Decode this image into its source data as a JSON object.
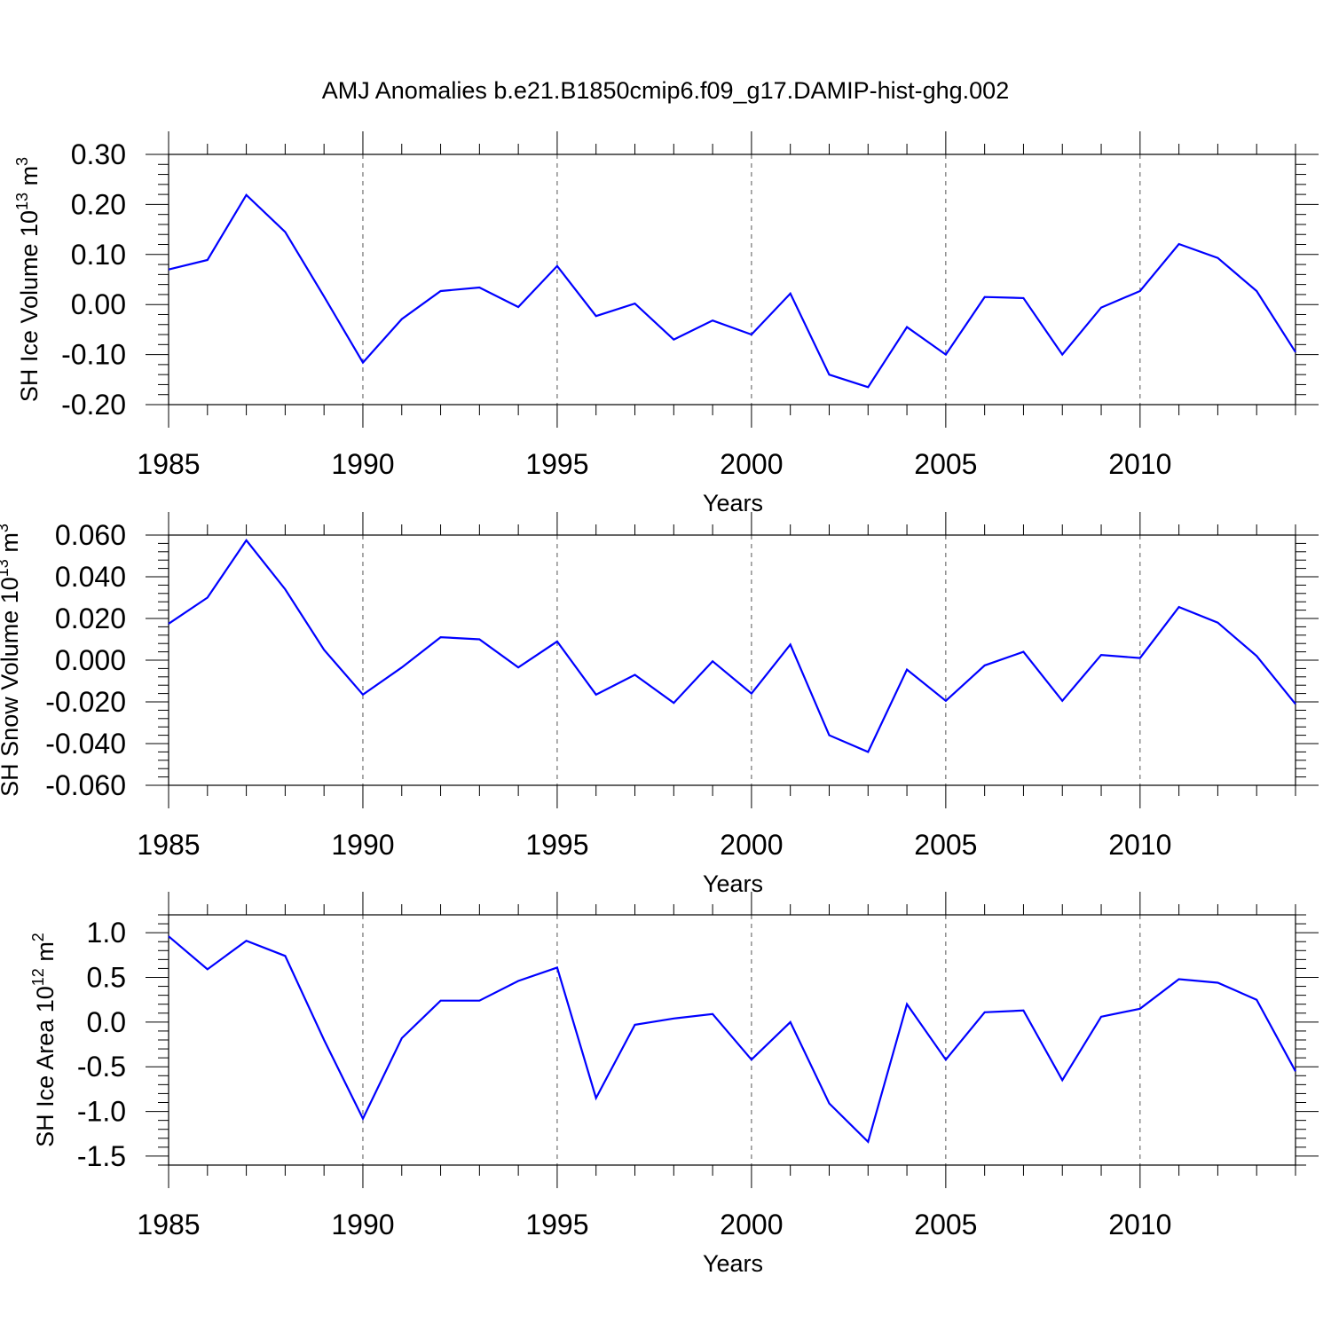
{
  "title": "AMJ Anomalies b.e21.B1850cmip6.f09_g17.DAMIP-hist-ghg.002",
  "colors": {
    "line": "#0000ff",
    "axes": "#000000",
    "grid": "#555555",
    "background": "#ffffff"
  },
  "chart_data": [
    {
      "type": "line",
      "xlabel": "Years",
      "ylabel_text": "SH Ice Volume 10",
      "ylabel_exp": "13",
      "ylabel_unit": "m",
      "ylabel_unit_exp": "3",
      "xlim": [
        1985,
        2014
      ],
      "ylim": [
        -0.2,
        0.3
      ],
      "x_ticks": [
        1985,
        1990,
        1995,
        2000,
        2005,
        2010
      ],
      "x_tick_labels": [
        "1985",
        "1990",
        "1995",
        "2000",
        "2005",
        "2010"
      ],
      "y_ticks": [
        0.3,
        0.2,
        0.1,
        0.0,
        -0.1,
        -0.2
      ],
      "y_tick_labels": [
        "0.30",
        "0.20",
        "0.10",
        "0.00",
        "-0.10",
        "-0.20"
      ],
      "y_minor_step": 0.02,
      "grid": "vertical dashed at major x ticks",
      "x": [
        1985,
        1986,
        1987,
        1988,
        1989,
        1990,
        1991,
        1992,
        1993,
        1994,
        1995,
        1996,
        1997,
        1998,
        1999,
        2000,
        2001,
        2002,
        2003,
        2004,
        2005,
        2006,
        2007,
        2008,
        2009,
        2010,
        2011,
        2012,
        2013,
        2014
      ],
      "values": [
        0.07,
        0.089,
        0.219,
        0.145,
        0.016,
        -0.116,
        -0.029,
        0.027,
        0.034,
        -0.005,
        0.077,
        -0.023,
        0.002,
        -0.07,
        -0.032,
        -0.06,
        0.022,
        -0.14,
        -0.165,
        -0.045,
        -0.1,
        0.015,
        0.013,
        -0.1,
        -0.006,
        0.027,
        0.121,
        0.093,
        0.027,
        -0.095
      ]
    },
    {
      "type": "line",
      "xlabel": "Years",
      "ylabel_text": "SH Snow Volume 10",
      "ylabel_exp": "13",
      "ylabel_unit": "m",
      "ylabel_unit_exp": "3",
      "xlim": [
        1985,
        2014
      ],
      "ylim": [
        -0.06,
        0.06
      ],
      "x_ticks": [
        1985,
        1990,
        1995,
        2000,
        2005,
        2010
      ],
      "x_tick_labels": [
        "1985",
        "1990",
        "1995",
        "2000",
        "2005",
        "2010"
      ],
      "y_ticks": [
        0.06,
        0.04,
        0.02,
        0.0,
        -0.02,
        -0.04,
        -0.06
      ],
      "y_tick_labels": [
        "0.060",
        "0.040",
        "0.020",
        "0.000",
        "-0.020",
        "-0.040",
        "-0.060"
      ],
      "y_minor_step": 0.004,
      "grid": "vertical dashed at major x ticks",
      "x": [
        1985,
        1986,
        1987,
        1988,
        1989,
        1990,
        1991,
        1992,
        1993,
        1994,
        1995,
        1996,
        1997,
        1998,
        1999,
        2000,
        2001,
        2002,
        2003,
        2004,
        2005,
        2006,
        2007,
        2008,
        2009,
        2010,
        2011,
        2012,
        2013,
        2014
      ],
      "values": [
        0.0175,
        0.03,
        0.0575,
        0.034,
        0.005,
        -0.0165,
        -0.0035,
        0.011,
        0.01,
        -0.0035,
        0.009,
        -0.0165,
        -0.007,
        -0.0205,
        -0.0005,
        -0.016,
        0.0075,
        -0.036,
        -0.044,
        -0.0045,
        -0.0195,
        -0.0025,
        0.004,
        -0.0195,
        0.0025,
        0.001,
        0.0255,
        0.018,
        0.002,
        -0.021
      ]
    },
    {
      "type": "line",
      "xlabel": "Years",
      "ylabel_text": "SH Ice Area 10",
      "ylabel_exp": "12",
      "ylabel_unit": "m",
      "ylabel_unit_exp": "2",
      "xlim": [
        1985,
        2014
      ],
      "ylim": [
        -1.6,
        1.2
      ],
      "x_ticks": [
        1985,
        1990,
        1995,
        2000,
        2005,
        2010
      ],
      "x_tick_labels": [
        "1985",
        "1990",
        "1995",
        "2000",
        "2005",
        "2010"
      ],
      "y_ticks": [
        1.0,
        0.5,
        0.0,
        -0.5,
        -1.0,
        -1.5
      ],
      "y_tick_labels": [
        "1.0",
        "0.5",
        "0.0",
        "-0.5",
        "-1.0",
        "-1.5"
      ],
      "y_minor_step": 0.1,
      "grid": "vertical dashed at major x ticks",
      "x": [
        1985,
        1986,
        1987,
        1988,
        1989,
        1990,
        1991,
        1992,
        1993,
        1994,
        1995,
        1996,
        1997,
        1998,
        1999,
        2000,
        2001,
        2002,
        2003,
        2004,
        2005,
        2006,
        2007,
        2008,
        2009,
        2010,
        2011,
        2012,
        2013,
        2014
      ],
      "values": [
        0.96,
        0.59,
        0.91,
        0.74,
        -0.2,
        -1.08,
        -0.18,
        0.24,
        0.24,
        0.46,
        0.61,
        -0.85,
        -0.03,
        0.04,
        0.09,
        -0.42,
        0.0,
        -0.91,
        -1.34,
        0.2,
        -0.42,
        0.11,
        0.13,
        -0.65,
        0.06,
        0.15,
        0.48,
        0.44,
        0.25,
        -0.55
      ]
    }
  ]
}
